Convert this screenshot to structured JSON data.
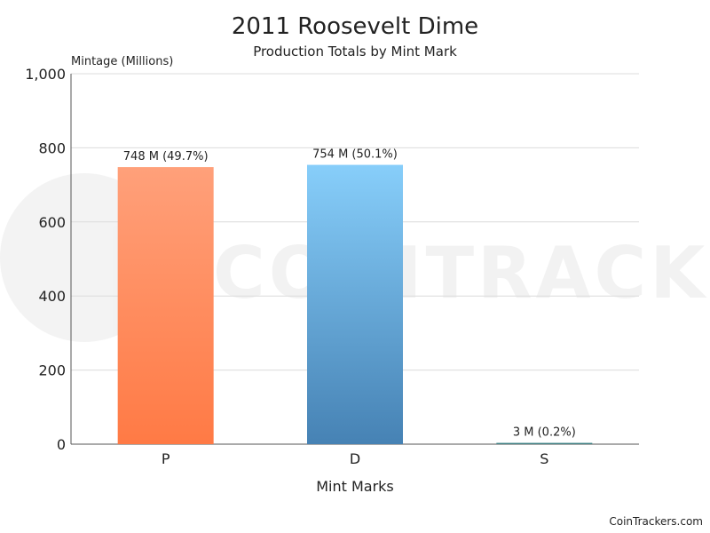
{
  "chart_data": {
    "type": "bar",
    "title": "2011 Roosevelt Dime",
    "subtitle": "Production Totals by Mint Mark",
    "ylabel": "Mintage (Millions)",
    "xlabel": "Mint Marks",
    "categories": [
      "P",
      "D",
      "S"
    ],
    "values": [
      748,
      754,
      3
    ],
    "data_labels": [
      "748 M (49.7%)",
      "754 M (50.1%)",
      "3 M (0.2%)"
    ],
    "ylim": [
      0,
      1000
    ],
    "yticks": [
      0,
      200,
      400,
      600,
      800,
      1000
    ],
    "ytick_labels": [
      "0",
      "200",
      "400",
      "600",
      "800",
      "1,000"
    ],
    "grid": true,
    "bar_colors": [
      {
        "top": "#ffa07a",
        "bottom": "#ff7a45"
      },
      {
        "top": "#87cefa",
        "bottom": "#4682b4"
      },
      {
        "top": "#5f9ea0",
        "bottom": "#2f6f73"
      }
    ]
  },
  "watermark": {
    "brand_text": "COINTRACKERS"
  },
  "footer": {
    "credit": "CoinTrackers.com"
  }
}
